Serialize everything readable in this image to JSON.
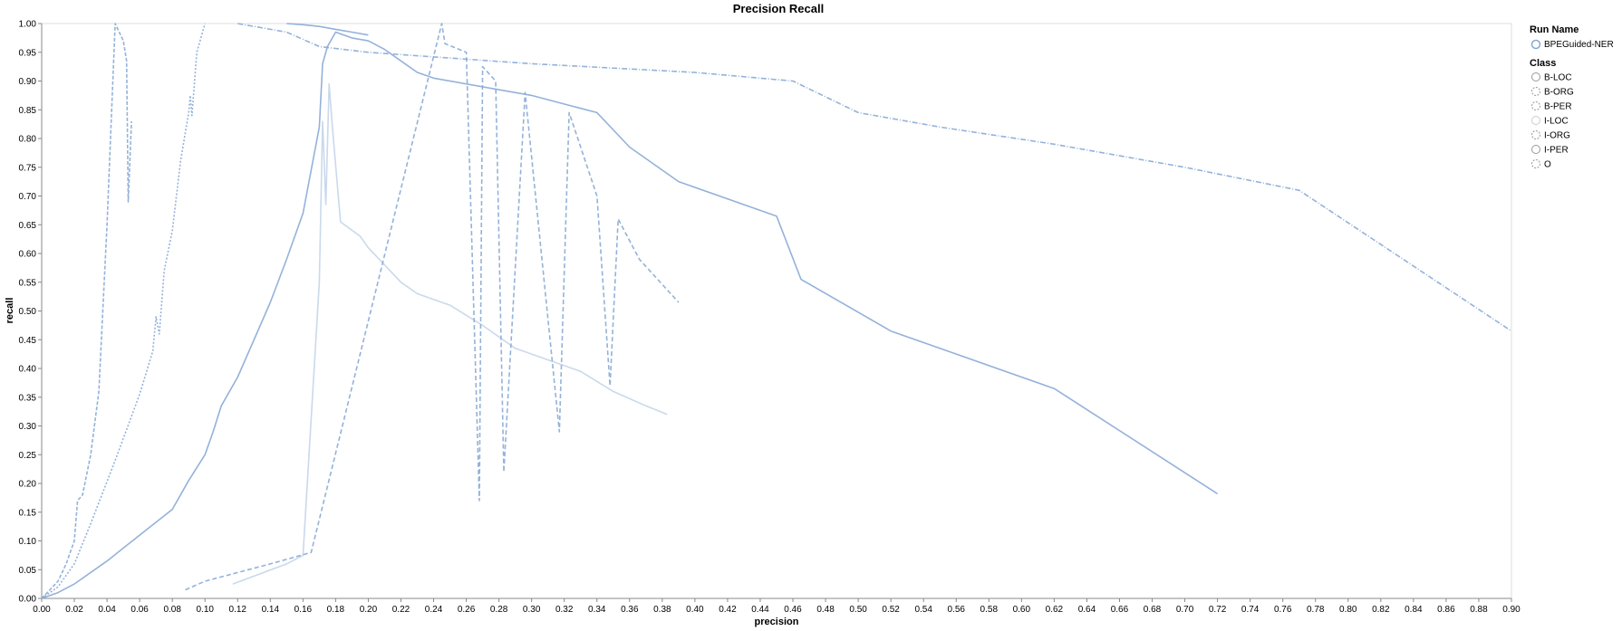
{
  "chart_data": {
    "type": "line",
    "title": "Precision Recall",
    "xlabel": "precision",
    "ylabel": "recall",
    "xlim": [
      0,
      0.9
    ],
    "ylim": [
      0,
      1
    ],
    "x_ticks": [
      "0.00",
      "0.02",
      "0.04",
      "0.06",
      "0.08",
      "0.10",
      "0.12",
      "0.14",
      "0.16",
      "0.18",
      "0.20",
      "0.22",
      "0.24",
      "0.26",
      "0.28",
      "0.30",
      "0.32",
      "0.34",
      "0.36",
      "0.38",
      "0.40",
      "0.42",
      "0.44",
      "0.46",
      "0.48",
      "0.50",
      "0.52",
      "0.54",
      "0.56",
      "0.58",
      "0.60",
      "0.62",
      "0.64",
      "0.66",
      "0.68",
      "0.70",
      "0.72",
      "0.74",
      "0.76",
      "0.78",
      "0.80",
      "0.82",
      "0.84",
      "0.86",
      "0.88",
      "0.90"
    ],
    "y_ticks": [
      "0.00",
      "0.05",
      "0.10",
      "0.15",
      "0.20",
      "0.25",
      "0.30",
      "0.35",
      "0.40",
      "0.45",
      "0.50",
      "0.55",
      "0.60",
      "0.65",
      "0.70",
      "0.75",
      "0.80",
      "0.85",
      "0.90",
      "0.95",
      "1.00"
    ],
    "grid": false,
    "legend_position": "right",
    "color": "#88aad5",
    "legend": {
      "run_title": "Run Name",
      "runs": [
        "BPEGuided-NER"
      ],
      "class_title": "Class",
      "classes": [
        "B-LOC",
        "B-ORG",
        "B-PER",
        "I-LOC",
        "I-ORG",
        "I-PER",
        "O"
      ]
    },
    "series": [
      {
        "name": "B-LOC",
        "dash": "solid",
        "opacity": 0.9,
        "x": [
          0,
          0.01,
          0.02,
          0.04,
          0.06,
          0.08,
          0.09,
          0.1,
          0.105,
          0.11,
          0.12,
          0.13,
          0.14,
          0.15,
          0.16,
          0.17,
          0.172,
          0.175,
          0.18,
          0.19,
          0.2,
          0.21,
          0.22,
          0.23,
          0.24,
          0.3,
          0.34,
          0.36,
          0.39,
          0.45,
          0.465,
          0.52,
          0.62,
          0.72
        ],
        "y": [
          0,
          0.01,
          0.025,
          0.065,
          0.11,
          0.155,
          0.205,
          0.25,
          0.29,
          0.335,
          0.385,
          0.45,
          0.515,
          0.59,
          0.67,
          0.82,
          0.93,
          0.96,
          0.985,
          0.975,
          0.97,
          0.955,
          0.935,
          0.915,
          0.905,
          0.875,
          0.845,
          0.785,
          0.725,
          0.665,
          0.555,
          0.465,
          0.365,
          0.182
        ]
      },
      {
        "name": "B-ORG",
        "dash": "5,3",
        "opacity": 0.9,
        "x": [
          0.088,
          0.1,
          0.12,
          0.14,
          0.165,
          0.245,
          0.247,
          0.26,
          0.268,
          0.27,
          0.278,
          0.283,
          0.296,
          0.317,
          0.323,
          0.34,
          0.348,
          0.353,
          0.366,
          0.39
        ],
        "y": [
          0.015,
          0.03,
          0.045,
          0.06,
          0.08,
          1.0,
          0.965,
          0.95,
          0.17,
          0.925,
          0.9,
          0.22,
          0.88,
          0.29,
          0.845,
          0.7,
          0.37,
          0.66,
          0.59,
          0.515
        ]
      },
      {
        "name": "B-PER",
        "dash": "2,2",
        "opacity": 0.9,
        "x": [
          0,
          0.01,
          0.02,
          0.03,
          0.045,
          0.06,
          0.068,
          0.07,
          0.072,
          0.075,
          0.08,
          0.085,
          0.09,
          0.091,
          0.092,
          0.095,
          0.1
        ],
        "y": [
          0,
          0.02,
          0.06,
          0.13,
          0.24,
          0.355,
          0.43,
          0.49,
          0.46,
          0.57,
          0.64,
          0.76,
          0.845,
          0.875,
          0.84,
          0.95,
          1.0
        ]
      },
      {
        "name": "I-LOC",
        "dash": "solid",
        "opacity": 0.45,
        "x": [
          0.117,
          0.15,
          0.16,
          0.17,
          0.172,
          0.174,
          0.176,
          0.178,
          0.183,
          0.195,
          0.2,
          0.21,
          0.22,
          0.23,
          0.25,
          0.27,
          0.29,
          0.31,
          0.33,
          0.35,
          0.37,
          0.383
        ],
        "y": [
          0.025,
          0.06,
          0.075,
          0.55,
          0.83,
          0.685,
          0.895,
          0.82,
          0.655,
          0.63,
          0.61,
          0.58,
          0.55,
          0.53,
          0.51,
          0.475,
          0.435,
          0.415,
          0.395,
          0.36,
          0.335,
          0.32
        ]
      },
      {
        "name": "I-ORG",
        "dash": "4,2",
        "opacity": 0.9,
        "x": [
          0,
          0.01,
          0.015,
          0.02,
          0.022,
          0.025,
          0.03,
          0.035,
          0.04,
          0.045,
          0.05,
          0.052,
          0.053,
          0.055
        ],
        "y": [
          0,
          0.03,
          0.06,
          0.1,
          0.17,
          0.18,
          0.25,
          0.36,
          0.65,
          1.0,
          0.97,
          0.935,
          0.69,
          0.83
        ]
      },
      {
        "name": "I-PER",
        "dash": "solid",
        "opacity": 0.9,
        "x": [
          0.15,
          0.16,
          0.17,
          0.18,
          0.19,
          0.2
        ],
        "y": [
          1.0,
          0.998,
          0.995,
          0.99,
          0.985,
          0.98
        ]
      },
      {
        "name": "O",
        "dash": "6,2,1,2",
        "opacity": 0.9,
        "x": [
          0.12,
          0.13,
          0.15,
          0.17,
          0.2,
          0.3,
          0.4,
          0.46,
          0.5,
          0.55,
          0.62,
          0.7,
          0.77,
          0.9
        ],
        "y": [
          1.0,
          0.995,
          0.985,
          0.96,
          0.95,
          0.93,
          0.915,
          0.9,
          0.845,
          0.82,
          0.79,
          0.75,
          0.71,
          0.465
        ]
      }
    ]
  }
}
